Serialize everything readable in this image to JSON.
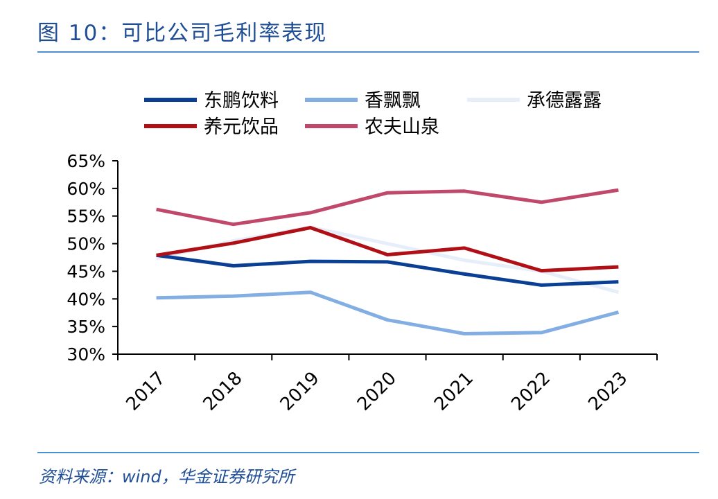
{
  "figure_title": "图 10：可比公司毛利率表现",
  "source_note": "资料来源：wind，华金证券研究所",
  "colors": {
    "title_text": "#1f4e96",
    "rule": "#4a8fd0",
    "axis": "#000000"
  },
  "chart_data": {
    "type": "line",
    "title": "",
    "xlabel": "",
    "ylabel": "",
    "categories": [
      "2017",
      "2018",
      "2019",
      "2020",
      "2021",
      "2022",
      "2023"
    ],
    "ylim": [
      0.3,
      0.65
    ],
    "yticks": [
      0.3,
      0.35,
      0.4,
      0.45,
      0.5,
      0.55,
      0.6,
      0.65
    ],
    "ytick_labels": [
      "30%",
      "35%",
      "40%",
      "45%",
      "50%",
      "55%",
      "60%",
      "65%"
    ],
    "grid": false,
    "legend": "top",
    "series": [
      {
        "name": "东鹏饮料",
        "color": "#0a3f94",
        "values": [
          0.479,
          0.46,
          0.468,
          0.467,
          0.445,
          0.425,
          0.431
        ]
      },
      {
        "name": "香飘飘",
        "color": "#82aee3",
        "values": [
          0.402,
          0.405,
          0.412,
          0.362,
          0.337,
          0.339,
          0.376
        ]
      },
      {
        "name": "承德露露",
        "color": "#e6eefa",
        "values": [
          0.473,
          0.505,
          0.53,
          0.5,
          0.47,
          0.45,
          0.412
        ]
      },
      {
        "name": "养元饮品",
        "color": "#b01015",
        "values": [
          0.479,
          0.501,
          0.529,
          0.48,
          0.492,
          0.451,
          0.458
        ]
      },
      {
        "name": "农夫山泉",
        "color": "#c0486a",
        "values": [
          0.562,
          0.535,
          0.556,
          0.592,
          0.595,
          0.575,
          0.597
        ]
      }
    ]
  }
}
